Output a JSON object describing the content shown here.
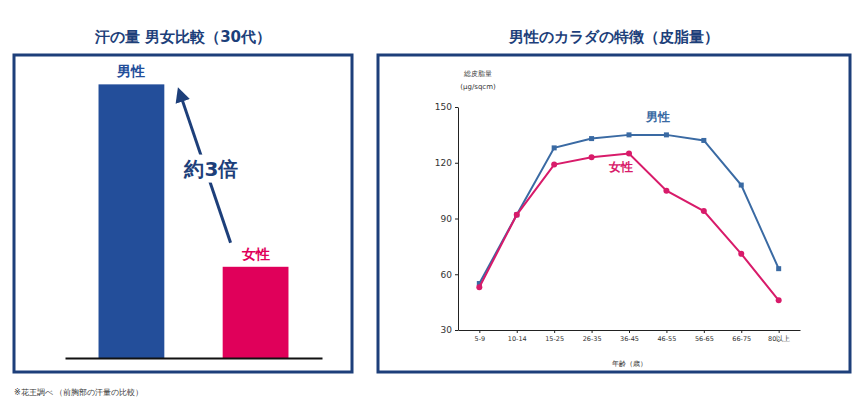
{
  "chart_data": [
    {
      "type": "bar",
      "title": "汗の量 男女比較（30代）",
      "categories": [
        "男性",
        "女性"
      ],
      "values": [
        3,
        1
      ],
      "colors": [
        "#234e9a",
        "#e0005a"
      ],
      "ylim": [
        0,
        3.3
      ],
      "tick_labels": false,
      "annotation": "約3倍",
      "note": "※花王調べ （前胸部の汗量の比較）"
    },
    {
      "type": "line",
      "title": "男性のカラダの特徴（皮脂量）",
      "x_label": "年齢（歳）",
      "y_label": "総皮脂量\n(μg/sqcm)",
      "categories": [
        "5-9",
        "10-14",
        "15-25",
        "26-35",
        "36-45",
        "46-55",
        "56-65",
        "66-75",
        "80以上"
      ],
      "series": [
        {
          "name": "男性",
          "color": "#3a6aa3",
          "marker": "square",
          "values": [
            55,
            92,
            128,
            133,
            135,
            135,
            132,
            108,
            63
          ]
        },
        {
          "name": "女性",
          "color": "#d81b6a",
          "marker": "circle",
          "values": [
            53,
            92,
            119,
            123,
            125,
            105,
            94,
            71,
            46
          ]
        }
      ],
      "ylim": [
        30,
        150
      ],
      "yticks": [
        30,
        60,
        90,
        120,
        150
      ],
      "grid": false
    }
  ]
}
